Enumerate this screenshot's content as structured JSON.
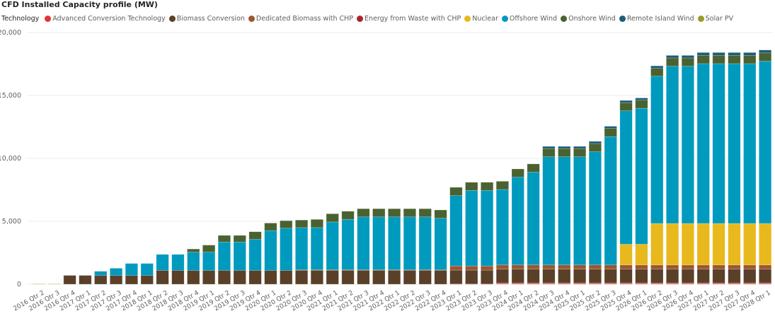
{
  "chart_data": {
    "type": "bar",
    "stacked": true,
    "title": "CFD Installed Capacity profile (MW)",
    "legend_title": "Technology",
    "legend_position": "top-left",
    "xlabel": "",
    "ylabel": "",
    "ylim": [
      0,
      20000
    ],
    "yticks": [
      0,
      5000,
      10000,
      15000,
      20000
    ],
    "ytick_labels": [
      "0",
      "5,000",
      "10,000",
      "15,000",
      "20,000"
    ],
    "grid": true,
    "categories": [
      "2016 Qtr 2",
      "2016 Qtr 3",
      "2016 Qtr 4",
      "2017 Qtr 1",
      "2017 Qtr 2",
      "2017 Qtr 3",
      "2017 Qtr 4",
      "2018 Qtr 1",
      "2018 Qtr 2",
      "2018 Qtr 3",
      "2018 Qtr 4",
      "2019 Qtr 1",
      "2019 Qtr 2",
      "2019 Qtr 3",
      "2019 Qtr 4",
      "2020 Qtr 1",
      "2020 Qtr 2",
      "2020 Qtr 3",
      "2020 Qtr 4",
      "2021 Qtr 1",
      "2021 Qtr 2",
      "2021 Qtr 3",
      "2021 Qtr 4",
      "2022 Qtr 1",
      "2022 Qtr 2",
      "2022 Qtr 3",
      "2022 Qtr 4",
      "2023 Qtr 1",
      "2023 Qtr 2",
      "2023 Qtr 3",
      "2023 Qtr 4",
      "2024 Qtr 1",
      "2024 Qtr 2",
      "2024 Qtr 3",
      "2024 Qtr 4",
      "2025 Qtr 1",
      "2025 Qtr 2",
      "2025 Qtr 3",
      "2025 Qtr 4",
      "2026 Qtr 1",
      "2026 Qtr 2",
      "2026 Qtr 3",
      "2026 Qtr 4",
      "2027 Qtr 1",
      "2027 Qtr 2",
      "2027 Qtr 3",
      "2027 Qtr 4",
      "2028 Qtr 1"
    ],
    "series": [
      {
        "name": "Advanced Conversion Technology",
        "color": "#e8303a",
        "values": [
          0,
          0,
          0,
          0,
          0,
          0,
          0,
          0,
          0,
          0,
          0,
          0,
          0,
          0,
          0,
          0,
          0,
          0,
          0,
          0,
          0,
          0,
          0,
          0,
          0,
          0,
          0,
          20,
          20,
          20,
          60,
          60,
          60,
          60,
          60,
          60,
          60,
          60,
          60,
          60,
          60,
          60,
          60,
          60,
          60,
          60,
          60,
          60
        ]
      },
      {
        "name": "Energy from Waste with CHP",
        "color": "#a8262a",
        "values": [
          0,
          0,
          0,
          0,
          0,
          0,
          0,
          0,
          0,
          0,
          0,
          0,
          0,
          0,
          0,
          0,
          0,
          0,
          0,
          0,
          0,
          0,
          0,
          0,
          0,
          0,
          0,
          0,
          0,
          0,
          40,
          40,
          40,
          40,
          40,
          40,
          40,
          40,
          40,
          40,
          40,
          40,
          40,
          40,
          40,
          40,
          40,
          40
        ]
      },
      {
        "name": "Biomass Conversion",
        "color": "#5a4029",
        "values": [
          0,
          0,
          700,
          700,
          700,
          700,
          700,
          700,
          1100,
          1100,
          1100,
          1100,
          1100,
          1100,
          1100,
          1100,
          1100,
          1100,
          1100,
          1100,
          1100,
          1100,
          1100,
          1100,
          1100,
          1100,
          1100,
          1100,
          1100,
          1100,
          1100,
          1100,
          1100,
          1100,
          1100,
          1100,
          1100,
          1100,
          1100,
          1100,
          1100,
          1100,
          1100,
          1100,
          1100,
          1100,
          1100,
          1100
        ]
      },
      {
        "name": "Dedicated Biomass with CHP",
        "color": "#9c5630",
        "values": [
          0,
          0,
          0,
          0,
          0,
          0,
          0,
          0,
          0,
          0,
          0,
          0,
          0,
          0,
          0,
          0,
          0,
          50,
          50,
          50,
          50,
          50,
          50,
          50,
          50,
          50,
          50,
          330,
          330,
          330,
          330,
          330,
          330,
          330,
          330,
          330,
          330,
          330,
          330,
          330,
          330,
          330,
          330,
          330,
          330,
          330,
          330,
          330
        ]
      },
      {
        "name": "Nuclear",
        "color": "#e8b91c",
        "values": [
          0,
          0,
          0,
          0,
          0,
          0,
          0,
          0,
          0,
          0,
          0,
          0,
          0,
          0,
          0,
          0,
          0,
          0,
          0,
          0,
          0,
          0,
          0,
          0,
          0,
          0,
          0,
          0,
          0,
          0,
          0,
          0,
          0,
          0,
          0,
          0,
          0,
          0,
          1650,
          1650,
          3300,
          3300,
          3300,
          3300,
          3300,
          3300,
          3300,
          3300
        ]
      },
      {
        "name": "Offshore Wind",
        "color": "#009abf",
        "values": [
          0,
          0,
          0,
          0,
          330,
          570,
          950,
          950,
          1270,
          1270,
          1450,
          1450,
          2260,
          2260,
          2470,
          3160,
          3350,
          3350,
          3350,
          3800,
          4000,
          4200,
          4200,
          4200,
          4200,
          4200,
          4100,
          5600,
          6000,
          6000,
          6000,
          6980,
          7380,
          8600,
          8600,
          8600,
          9000,
          10200,
          10600,
          10800,
          11700,
          12500,
          12500,
          12700,
          12700,
          12700,
          12700,
          12900
        ]
      },
      {
        "name": "Onshore Wind",
        "color": "#4a6230",
        "values": [
          0,
          0,
          0,
          0,
          0,
          0,
          0,
          0,
          0,
          0,
          250,
          560,
          520,
          520,
          600,
          600,
          600,
          600,
          650,
          650,
          650,
          650,
          650,
          650,
          650,
          650,
          650,
          650,
          650,
          650,
          650,
          650,
          650,
          650,
          650,
          650,
          650,
          650,
          650,
          650,
          650,
          650,
          650,
          650,
          650,
          650,
          650,
          650
        ]
      },
      {
        "name": "Remote Island Wind",
        "color": "#1c5c78",
        "values": [
          0,
          0,
          0,
          0,
          0,
          0,
          0,
          0,
          0,
          0,
          0,
          0,
          0,
          0,
          0,
          0,
          0,
          0,
          0,
          0,
          0,
          0,
          0,
          0,
          0,
          0,
          0,
          0,
          0,
          0,
          0,
          0,
          0,
          170,
          170,
          170,
          170,
          170,
          170,
          170,
          170,
          200,
          200,
          230,
          230,
          230,
          230,
          230
        ]
      },
      {
        "name": "Solar PV",
        "color": "#9e9a28",
        "values": [
          30,
          30,
          0,
          0,
          0,
          0,
          0,
          0,
          0,
          0,
          0,
          0,
          0,
          0,
          0,
          0,
          0,
          0,
          0,
          0,
          0,
          0,
          0,
          0,
          0,
          0,
          0,
          0,
          0,
          0,
          0,
          0,
          0,
          0,
          0,
          0,
          0,
          0,
          0,
          0,
          0,
          0,
          0,
          0,
          0,
          0,
          0,
          0
        ]
      }
    ],
    "legend_order": [
      "Advanced Conversion Technology",
      "Biomass Conversion",
      "Dedicated Biomass with CHP",
      "Energy from Waste with CHP",
      "Nuclear",
      "Offshore Wind",
      "Onshore Wind",
      "Remote Island Wind",
      "Solar PV"
    ],
    "stack_order": [
      "Advanced Conversion Technology",
      "Energy from Waste with CHP",
      "Biomass Conversion",
      "Dedicated Biomass with CHP",
      "Nuclear",
      "Offshore Wind",
      "Onshore Wind",
      "Remote Island Wind",
      "Solar PV"
    ]
  }
}
